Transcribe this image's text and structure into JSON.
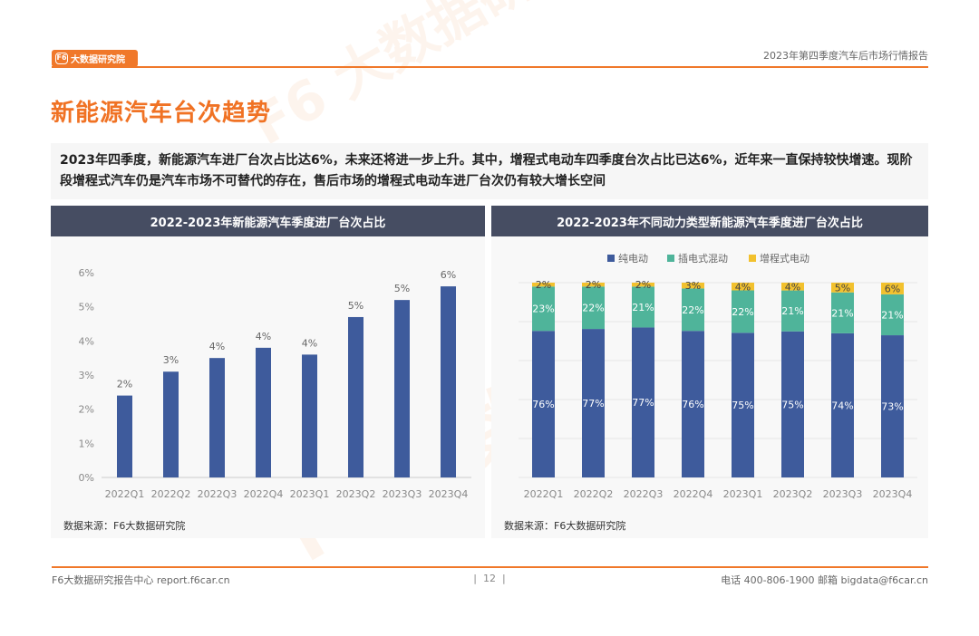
{
  "header": {
    "logo_text": "大数据研究院",
    "logo_mark": "F6",
    "report_title": "2023年第四季度汽车后市场行情报告"
  },
  "page_title": "新能源汽车台次趋势",
  "summary": "2023年四季度，新能源汽车进厂台次占比达6%，未来还将进一步上升。其中，增程式电动车四季度台次占比已达6%，近年来一直保持较快增速。现阶段增程式汽车仍是汽车市场不可替代的存在，售后市场的增程式电动车进厂台次仍有较大增长空间",
  "left_panel": {
    "title": "2022-2023年新能源汽车季度进厂台次占比",
    "source": "数据来源：F6大数据研究院"
  },
  "right_panel": {
    "title": "2022-2023年不同动力类型新能源汽车季度进厂台次占比",
    "source": "数据来源：F6大数据研究院"
  },
  "chart_data": [
    {
      "type": "bar",
      "title": "2022-2023年新能源汽车季度进厂台次占比",
      "categories": [
        "2022Q1",
        "2022Q2",
        "2022Q3",
        "2022Q4",
        "2023Q1",
        "2023Q2",
        "2023Q3",
        "2023Q4"
      ],
      "values": [
        2.4,
        3.1,
        3.5,
        3.8,
        3.6,
        4.7,
        5.2,
        5.6
      ],
      "data_labels": [
        "2%",
        "3%",
        "4%",
        "4%",
        "4%",
        "5%",
        "5%",
        "6%"
      ],
      "yticks": [
        "0%",
        "1%",
        "2%",
        "3%",
        "4%",
        "5%",
        "6%"
      ],
      "ylim": [
        0,
        6
      ],
      "color": "#3e5b9c"
    },
    {
      "type": "bar",
      "stacked": true,
      "title": "2022-2023年不同动力类型新能源汽车季度进厂台次占比",
      "categories": [
        "2022Q1",
        "2022Q2",
        "2022Q3",
        "2022Q4",
        "2023Q1",
        "2023Q2",
        "2023Q3",
        "2023Q4"
      ],
      "legend_position": "top",
      "ylim": [
        0,
        100
      ],
      "series": [
        {
          "name": "纯电动",
          "color": "#3e5b9c",
          "values": [
            76,
            77,
            77,
            76,
            75,
            75,
            74,
            73
          ],
          "labels": [
            "76%",
            "77%",
            "77%",
            "76%",
            "75%",
            "75%",
            "74%",
            "73%"
          ]
        },
        {
          "name": "插电式混动",
          "color": "#4fb49a",
          "values": [
            23,
            22,
            21,
            22,
            22,
            21,
            21,
            21
          ],
          "labels": [
            "23%",
            "22%",
            "21%",
            "22%",
            "22%",
            "21%",
            "21%",
            "21%"
          ]
        },
        {
          "name": "增程式电动",
          "color": "#f2c12e",
          "values": [
            2,
            2,
            2,
            3,
            4,
            4,
            5,
            6
          ],
          "labels": [
            "2%",
            "2%",
            "2%",
            "3%",
            "4%",
            "4%",
            "5%",
            "6%"
          ]
        }
      ]
    }
  ],
  "footer": {
    "left": "F6大数据研究报告中心 report.f6car.cn",
    "page": "12",
    "right": "电话 400-806-1900  邮箱 bigdata@f6car.cn"
  }
}
